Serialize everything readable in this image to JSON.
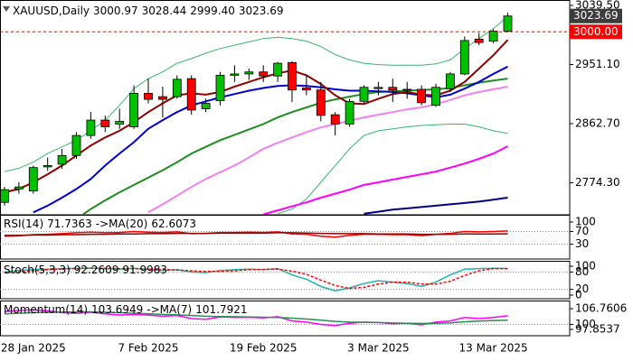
{
  "chart_data": [
    {
      "type": "candlestick",
      "title": "XAUUSD,Daily",
      "ohlc_text": [
        "3000.97",
        "3028.44",
        "2999.40",
        "3023.69"
      ],
      "categories": [
        null,
        null,
        "28 Jan 2025",
        null,
        null,
        null,
        null,
        null,
        null,
        null,
        "7 Feb 2025",
        null,
        null,
        null,
        null,
        null,
        null,
        null,
        "19 Feb 2025",
        null,
        null,
        null,
        null,
        null,
        null,
        null,
        "3 Mar 2025",
        null,
        null,
        null,
        null,
        null,
        null,
        null,
        "13 Mar 2025",
        null
      ],
      "open": [
        2745,
        2765,
        2762,
        2798,
        2802,
        2815,
        2845,
        2868,
        2862,
        2858,
        2908,
        2903,
        2903,
        2930,
        2885,
        2897,
        2935,
        2937,
        2940,
        2934,
        2954,
        2916,
        2913,
        2876,
        2862,
        2896,
        2915,
        2917,
        2913,
        2914,
        2890,
        2915,
        2937,
        2989,
        2986,
        3000.97
      ],
      "high": [
        2768,
        2775,
        2800,
        2812,
        2825,
        2850,
        2880,
        2875,
        2885,
        2920,
        2930,
        2918,
        2935,
        2935,
        2900,
        2940,
        2950,
        2945,
        2950,
        2955,
        2956,
        2935,
        2925,
        2880,
        2900,
        2920,
        2925,
        2930,
        2925,
        2920,
        2922,
        2940,
        2993,
        2998,
        3004,
        3028.44
      ],
      "low": [
        2740,
        2758,
        2758,
        2792,
        2795,
        2810,
        2840,
        2850,
        2855,
        2855,
        2893,
        2872,
        2900,
        2876,
        2880,
        2890,
        2925,
        2928,
        2925,
        2925,
        2895,
        2905,
        2866,
        2845,
        2858,
        2893,
        2905,
        2895,
        2900,
        2890,
        2888,
        2910,
        2935,
        2980,
        2983,
        2999.4
      ],
      "close": [
        2764,
        2768,
        2797,
        2800,
        2815,
        2845,
        2868,
        2858,
        2866,
        2908,
        2899,
        2899,
        2929,
        2883,
        2893,
        2935,
        2937,
        2940,
        2934,
        2953,
        2913,
        2913,
        2875,
        2862,
        2896,
        2917,
        2917,
        2913,
        2914,
        2894,
        2917,
        2937,
        2987,
        2984,
        3001,
        3023.69
      ],
      "up_color": "#00c000",
      "down_color": "#ff0000",
      "series": [
        {
          "color": "#3cb371",
          "width": 1,
          "values": [
            2791,
            2796,
            2805,
            2818,
            2828,
            2838,
            2852,
            2868,
            2890,
            2915,
            2930,
            2940,
            2953,
            2960,
            2968,
            2975,
            2980,
            2985,
            2990,
            2992,
            2990,
            2986,
            2978,
            2966,
            2958,
            2953,
            2951,
            2950,
            2950,
            2950,
            2952,
            2958,
            2975,
            2990,
            3005,
            3023
          ]
        },
        {
          "color": "#3cb371",
          "width": 1,
          "values": [
            null,
            null,
            null,
            null,
            null,
            null,
            null,
            null,
            null,
            null,
            null,
            null,
            null,
            null,
            null,
            null,
            null,
            null,
            null,
            2728,
            2735,
            2750,
            2775,
            2800,
            2825,
            2845,
            2852,
            2855,
            2858,
            2860,
            2861,
            2862,
            2862,
            2858,
            2852,
            2848
          ]
        },
        {
          "color": "#000080",
          "width": 2,
          "values": [
            null,
            null,
            null,
            null,
            null,
            null,
            null,
            null,
            null,
            null,
            null,
            null,
            null,
            null,
            null,
            null,
            null,
            null,
            null,
            null,
            null,
            null,
            null,
            null,
            null,
            2728,
            2731,
            2734,
            2736,
            2738,
            2740,
            2742,
            2744,
            2746,
            2749,
            2752
          ]
        },
        {
          "color": "#ff00ff",
          "width": 2,
          "values": [
            null,
            null,
            null,
            null,
            null,
            null,
            null,
            null,
            null,
            null,
            null,
            null,
            null,
            null,
            null,
            null,
            null,
            null,
            2727,
            2733,
            2739,
            2745,
            2752,
            2758,
            2764,
            2771,
            2775,
            2779,
            2783,
            2787,
            2791,
            2797,
            2803,
            2810,
            2818,
            2829
          ]
        },
        {
          "color": "#ee82ee",
          "width": 2,
          "values": [
            null,
            null,
            null,
            null,
            null,
            null,
            null,
            null,
            null,
            null,
            2730,
            2742,
            2755,
            2768,
            2780,
            2790,
            2800,
            2812,
            2825,
            2834,
            2842,
            2850,
            2857,
            2862,
            2867,
            2872,
            2876,
            2880,
            2884,
            2887,
            2892,
            2898,
            2905,
            2910,
            2914,
            2918
          ]
        },
        {
          "color": "#228b22",
          "width": 2,
          "values": [
            null,
            null,
            null,
            null,
            null,
            2720,
            2735,
            2748,
            2760,
            2771,
            2782,
            2793,
            2805,
            2818,
            2828,
            2838,
            2846,
            2854,
            2862,
            2872,
            2880,
            2887,
            2894,
            2899,
            2903,
            2907,
            2910,
            2911,
            2912,
            2913,
            2914,
            2916,
            2920,
            2924,
            2927,
            2930
          ]
        },
        {
          "color": "#0000cd",
          "width": 2,
          "values": [
            null,
            null,
            2730,
            2740,
            2752,
            2765,
            2780,
            2800,
            2818,
            2835,
            2855,
            2868,
            2880,
            2890,
            2896,
            2902,
            2907,
            2912,
            2916,
            2919,
            2920,
            2919,
            2917,
            2914,
            2912,
            2912,
            2911,
            2910,
            2908,
            2905,
            2902,
            2906,
            2915,
            2925,
            2937,
            2948
          ]
        },
        {
          "color": "#8b0000",
          "width": 2,
          "values": [
            2760,
            2765,
            2775,
            2787,
            2800,
            2815,
            2830,
            2842,
            2852,
            2865,
            2880,
            2893,
            2905,
            2908,
            2906,
            2910,
            2918,
            2925,
            2932,
            2938,
            2942,
            2935,
            2922,
            2905,
            2893,
            2892,
            2900,
            2907,
            2910,
            2906,
            2905,
            2912,
            2925,
            2945,
            2965,
            2988
          ]
        }
      ],
      "ylim": [
        2727.7,
        3044.9
      ],
      "yticks": [
        {
          "value": 2774.3,
          "label": "2774.30"
        },
        {
          "value": 2862.7,
          "label": "2862.70"
        },
        {
          "value": 2951.1,
          "label": "2951.10"
        },
        {
          "value": 3039.5,
          "label": "3039.50"
        }
      ],
      "level": {
        "value": 3000,
        "label": "3000.00"
      },
      "level_color": "#ff0000",
      "last_color": "#3c3c3c",
      "grid": false
    },
    {
      "type": "line",
      "title": "RSI(14)",
      "ma_title": "->MA(20)",
      "series": [
        {
          "color": "#ff0000",
          "values": [
            55,
            56,
            60,
            61,
            63,
            66,
            68,
            66,
            67,
            70,
            68,
            67,
            69,
            63,
            64,
            67,
            67,
            68,
            67,
            69,
            62,
            61,
            55,
            52,
            58,
            61,
            61,
            60,
            60,
            57,
            61,
            64,
            70,
            69,
            70,
            71.7363
          ]
        },
        {
          "color": "#8b0000",
          "values": [
            58,
            58,
            59,
            59,
            60,
            60,
            61,
            61,
            62,
            62,
            63,
            63,
            64,
            64,
            64,
            65,
            65,
            65,
            65,
            66,
            66,
            65,
            64,
            63,
            63,
            63,
            62,
            62,
            62,
            61,
            61,
            61,
            62,
            62,
            62,
            62.6073
          ]
        }
      ],
      "ylim": [
        0,
        100
      ],
      "yticks": [
        30,
        70,
        100
      ],
      "grid": true
    },
    {
      "type": "line",
      "title": "Stoch(5,3,3)",
      "series": [
        {
          "color": "#20b2aa",
          "values": [
            80,
            85,
            88,
            90,
            92,
            93,
            94,
            92,
            90,
            93,
            88,
            85,
            88,
            80,
            78,
            85,
            88,
            90,
            88,
            92,
            70,
            55,
            30,
            15,
            25,
            40,
            50,
            45,
            40,
            30,
            45,
            70,
            90,
            92,
            93,
            92.2609
          ]
        },
        {
          "color": "#ff0000",
          "dashed": true,
          "values": [
            78,
            80,
            84,
            88,
            90,
            92,
            93,
            93,
            92,
            92,
            90,
            89,
            87,
            84,
            82,
            82,
            84,
            88,
            89,
            90,
            83,
            72,
            52,
            33,
            23,
            27,
            38,
            45,
            45,
            38,
            38,
            48,
            68,
            84,
            92,
            91.9983
          ]
        }
      ],
      "ylim": [
        0,
        100
      ],
      "yticks": [
        0,
        20,
        80,
        100
      ],
      "grid": true
    },
    {
      "type": "line",
      "title": "Momentum(14)",
      "ma_title": "->MA(7)",
      "series": [
        {
          "color": "#ff00ff",
          "values": [
            105.5,
            106,
            106.2,
            105.8,
            105,
            104.8,
            105.2,
            104.5,
            104,
            104.3,
            104,
            103.5,
            103.8,
            102.5,
            102.2,
            103.2,
            103,
            103.1,
            102.8,
            103.3,
            101.5,
            101,
            100,
            99.5,
            100.5,
            101,
            100.8,
            100.3,
            100.5,
            99.8,
            101,
            101.5,
            103,
            102.5,
            103,
            103.6949
          ]
        },
        {
          "color": "#2e8b57",
          "values": [
            104.5,
            104.8,
            105,
            105.2,
            105.3,
            105.3,
            105.4,
            105.2,
            105,
            104.8,
            104.6,
            104.3,
            104.1,
            103.8,
            103.5,
            103.4,
            103.3,
            103.2,
            103.1,
            103,
            102.7,
            102.3,
            101.8,
            101.3,
            101,
            100.9,
            100.8,
            100.6,
            100.5,
            100.4,
            100.5,
            100.7,
            101.1,
            101.4,
            101.6,
            101.7921
          ]
        }
      ],
      "ylim": [
        97.8537,
        106.7606
      ],
      "yticks": [
        97.8537,
        100,
        106.7606
      ],
      "grid": true
    }
  ]
}
